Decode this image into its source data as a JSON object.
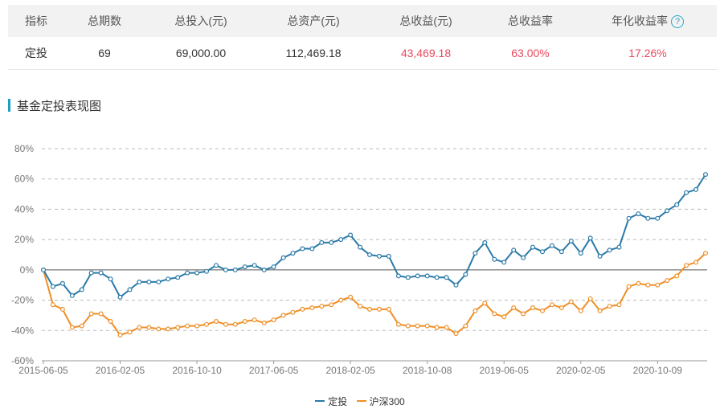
{
  "table": {
    "headers": [
      "指标",
      "总期数",
      "总投入(元)",
      "总资产(元)",
      "总收益(元)",
      "总收益率",
      "年化收益率"
    ],
    "row": [
      "定投",
      "69",
      "69,000.00",
      "112,469.18",
      "43,469.18",
      "63.00%",
      "17.26%"
    ],
    "help_icon": "question-circle-icon",
    "help_glyph": "?"
  },
  "section": {
    "title": "基金定投表现图"
  },
  "colors": {
    "dingtou": "#2a7aa8",
    "hs300": "#ef8f27",
    "negative": "#e84a5f",
    "accent": "#1f9ec4"
  },
  "chart_data": {
    "type": "line",
    "ylim": [
      -60,
      80
    ],
    "yticks": [
      -60,
      -40,
      -20,
      0,
      20,
      40,
      60,
      80
    ],
    "ytick_labels": [
      "-60%",
      "-40%",
      "-20%",
      "0%",
      "20%",
      "40%",
      "60%",
      "80%"
    ],
    "xtick_labels": [
      "2015-06-05",
      "2016-02-05",
      "2016-10-10",
      "2017-06-05",
      "2018-02-05",
      "2018-10-08",
      "2019-06-05",
      "2020-02-05",
      "2020-10-09"
    ],
    "xtick_index": [
      0,
      8,
      16,
      24,
      32,
      40,
      48,
      56,
      64
    ],
    "grid": true,
    "legend_position": "bottom",
    "series": [
      {
        "name": "定投",
        "color": "#2a7aa8",
        "values": [
          0,
          -11,
          -9,
          -17,
          -13,
          -2,
          -2,
          -6,
          -18,
          -13,
          -8,
          -8,
          -8,
          -6,
          -5,
          -2,
          -2,
          -1,
          3,
          0,
          0,
          2,
          3,
          0,
          2,
          8,
          11,
          14,
          14,
          18,
          18,
          20,
          23,
          15,
          10,
          9,
          9,
          -4,
          -5,
          -4,
          -4,
          -5,
          -5,
          -10,
          -3,
          11,
          18,
          7,
          5,
          13,
          8,
          15,
          12,
          16,
          12,
          19,
          11,
          21,
          9,
          13,
          15,
          34,
          37,
          34,
          34,
          39,
          43,
          51,
          53,
          63
        ]
      },
      {
        "name": "沪深300",
        "color": "#ef8f27",
        "values": [
          0,
          -23,
          -26,
          -38,
          -37,
          -29,
          -29,
          -34,
          -43,
          -41,
          -38,
          -38,
          -39,
          -39,
          -38,
          -37,
          -37,
          -36,
          -34,
          -36,
          -36,
          -34,
          -33,
          -35,
          -33,
          -30,
          -28,
          -26,
          -25,
          -24,
          -23,
          -20,
          -18,
          -24,
          -26,
          -26,
          -26,
          -36,
          -37,
          -37,
          -37,
          -38,
          -38,
          -42,
          -37,
          -27,
          -22,
          -29,
          -31,
          -25,
          -29,
          -25,
          -27,
          -23,
          -25,
          -21,
          -27,
          -19,
          -27,
          -24,
          -23,
          -11,
          -9,
          -10,
          -10,
          -7,
          -4,
          3,
          5,
          11
        ]
      }
    ]
  }
}
